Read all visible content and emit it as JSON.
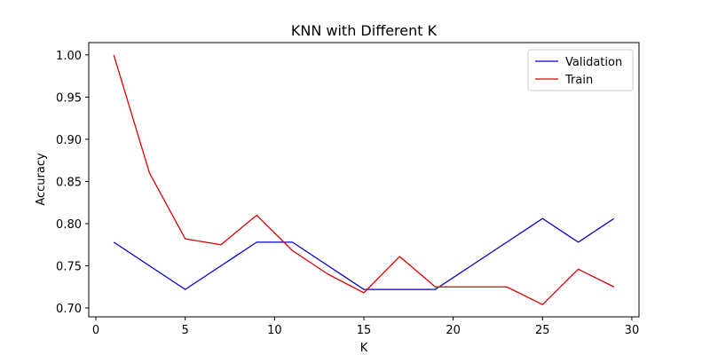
{
  "chart_data": {
    "type": "line",
    "title": "KNN with Different K",
    "xlabel": "K",
    "ylabel": "Accuracy",
    "xlim": [
      -0.4,
      30.4
    ],
    "ylim": [
      0.6895,
      1.0146
    ],
    "xticks": [
      0,
      5,
      10,
      15,
      20,
      25,
      30
    ],
    "yticks": [
      0.7,
      0.75,
      0.8,
      0.85,
      0.9,
      0.95,
      1.0
    ],
    "grid": false,
    "legend_position": "top-right",
    "series": [
      {
        "name": "Validation",
        "color": "#0000cc",
        "x": [
          1,
          3,
          5,
          7,
          9,
          11,
          13,
          15,
          17,
          19,
          21,
          23,
          25,
          27,
          29
        ],
        "y": [
          0.778,
          0.75,
          0.722,
          0.75,
          0.778,
          0.778,
          0.75,
          0.722,
          0.722,
          0.722,
          0.75,
          0.778,
          0.806,
          0.778,
          0.806
        ]
      },
      {
        "name": "Train",
        "color": "#dd0000",
        "x": [
          1,
          3,
          5,
          7,
          9,
          11,
          13,
          15,
          17,
          19,
          21,
          23,
          25,
          27,
          29
        ],
        "y": [
          1.0,
          0.86,
          0.782,
          0.775,
          0.81,
          0.768,
          0.74,
          0.718,
          0.761,
          0.725,
          0.725,
          0.725,
          0.704,
          0.746,
          0.725
        ]
      }
    ]
  }
}
